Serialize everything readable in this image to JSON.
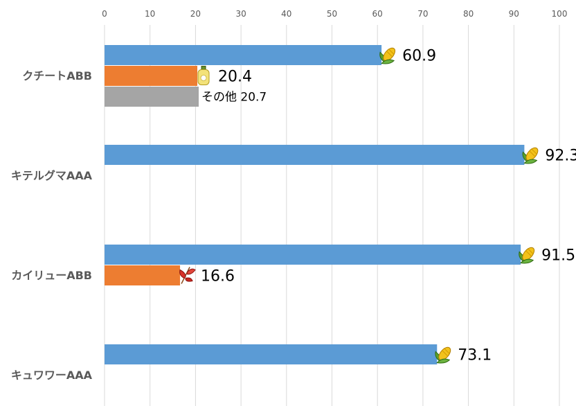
{
  "chart_data": {
    "type": "bar",
    "orientation": "horizontal",
    "xlim": [
      0,
      100
    ],
    "x_ticks": [
      "0",
      "10",
      "20",
      "30",
      "40",
      "50",
      "60",
      "70",
      "80",
      "90",
      "100"
    ],
    "grid": "vertical",
    "categories": [
      "クチートABB",
      "キテルグマAAA",
      "カイリューABB",
      "キュワワーAAA"
    ],
    "bars": [
      [
        {
          "value": 60.9,
          "label": "60.9",
          "icon": "corn-icon",
          "color": "#5b9bd5"
        },
        {
          "value": 20.4,
          "label": "20.4",
          "icon": "oil-bottle-icon",
          "color": "#ed7d31"
        },
        {
          "value": 20.7,
          "label": "その他 20.7",
          "icon": "",
          "color": "#a5a5a5"
        }
      ],
      [
        {
          "value": 92.3,
          "label": "92.3",
          "icon": "corn-icon",
          "color": "#5b9bd5"
        }
      ],
      [
        {
          "value": 91.5,
          "label": "91.5",
          "icon": "corn-icon",
          "color": "#5b9bd5"
        },
        {
          "value": 16.6,
          "label": "16.6",
          "icon": "red-leaf-icon",
          "color": "#ed7d31"
        }
      ],
      [
        {
          "value": 73.1,
          "label": "73.1",
          "icon": "corn-icon",
          "color": "#5b9bd5"
        }
      ]
    ]
  }
}
